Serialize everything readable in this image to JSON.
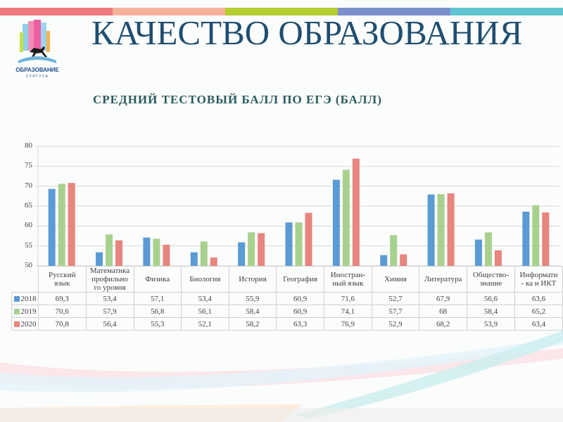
{
  "header": {
    "title": "КАЧЕСТВО ОБРАЗОВАНИЯ",
    "subtitle": "СРЕДНИЙ ТЕСТОВЫЙ БАЛЛ ПО ЕГЭ (БАЛЛ)",
    "logo_text_line1": "ОБРАЗОВАНИЕ",
    "logo_text_line2": "СУРГУТА"
  },
  "topbar_colors": [
    "#ef7a7e",
    "#f5b29a",
    "#b5cd2f",
    "#7b8fca",
    "#5fc4cf"
  ],
  "colors": {
    "2018": "#5b9bd5",
    "2019": "#a9d18e",
    "2020": "#e8857e"
  },
  "chart_data": {
    "type": "bar",
    "title": "СРЕДНИЙ ТЕСТОВЫЙ БАЛЛ ПО ЕГЭ (БАЛЛ)",
    "xlabel": "",
    "ylabel": "",
    "ylim": [
      50,
      80
    ],
    "yticks": [
      50,
      55,
      60,
      65,
      70,
      75,
      80
    ],
    "grid": true,
    "legend_position": "data-table",
    "categories": [
      "Русский язык",
      "Математика профильного уровня",
      "Физика",
      "Биология",
      "История",
      "География",
      "Иностранный язык",
      "Химия",
      "Литература",
      "Обществознание",
      "Информатика и ИКТ"
    ],
    "category_labels": [
      [
        "Русский",
        "язык"
      ],
      [
        "Математика",
        "профильно",
        "го уровня"
      ],
      [
        "Физика"
      ],
      [
        "Биология"
      ],
      [
        "История"
      ],
      [
        "География"
      ],
      [
        "Иностран-",
        "ный язык"
      ],
      [
        "Химия"
      ],
      [
        "Литература"
      ],
      [
        "Общество-",
        "знание"
      ],
      [
        "Информати",
        "- ка и ИКТ"
      ]
    ],
    "series": [
      {
        "name": "2018",
        "values": [
          69.3,
          53.4,
          57.1,
          53.4,
          55.9,
          60.9,
          71.6,
          52.7,
          67.9,
          56.6,
          63.6
        ],
        "labels": [
          "69,3",
          "53,4",
          "57,1",
          "53,4",
          "55,9",
          "60,9",
          "71,6",
          "52,7",
          "67,9",
          "56,6",
          "63,6"
        ]
      },
      {
        "name": "2019",
        "values": [
          70.6,
          57.9,
          56.8,
          56.1,
          58.4,
          60.9,
          74.1,
          57.7,
          68,
          58.4,
          65.2
        ],
        "labels": [
          "70,6",
          "57,9",
          "56,8",
          "56,1",
          "58,4",
          "60,9",
          "74,1",
          "57,7",
          "68",
          "58,4",
          "65,2"
        ]
      },
      {
        "name": "2020",
        "values": [
          70.8,
          56.4,
          55.3,
          52.1,
          58.2,
          63.3,
          76.9,
          52.9,
          68.2,
          53.9,
          63.4
        ],
        "labels": [
          "70,8",
          "56,4",
          "55,3",
          "52,1",
          "58,2",
          "63,3",
          "76,9",
          "52,9",
          "68,2",
          "53,9",
          "63,4"
        ]
      }
    ]
  }
}
